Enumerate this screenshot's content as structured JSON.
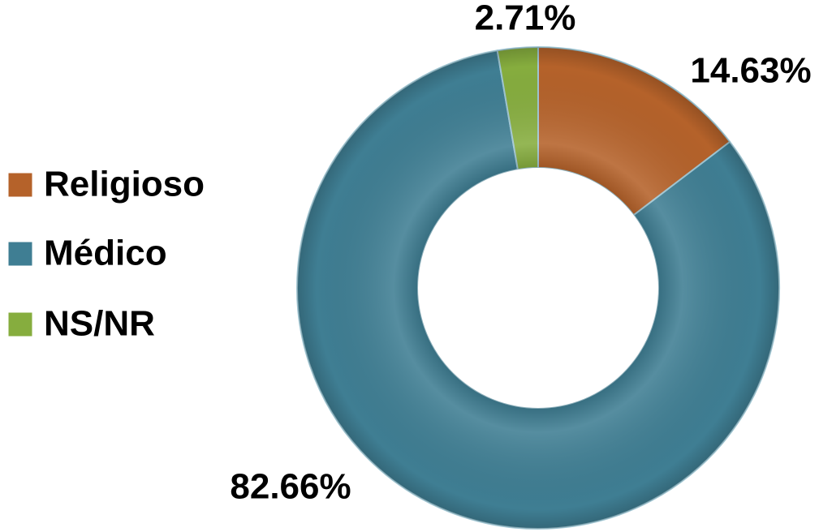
{
  "chart_data": {
    "type": "donut",
    "categories": [
      "Religioso",
      "Médico",
      "NS/NR"
    ],
    "values": [
      14.63,
      82.66,
      2.71
    ],
    "value_labels": [
      "14.63%",
      "82.66%",
      "2.71%"
    ],
    "colors": [
      "#b5622a",
      "#3f7e93",
      "#86ad3e"
    ],
    "legend": "left"
  }
}
